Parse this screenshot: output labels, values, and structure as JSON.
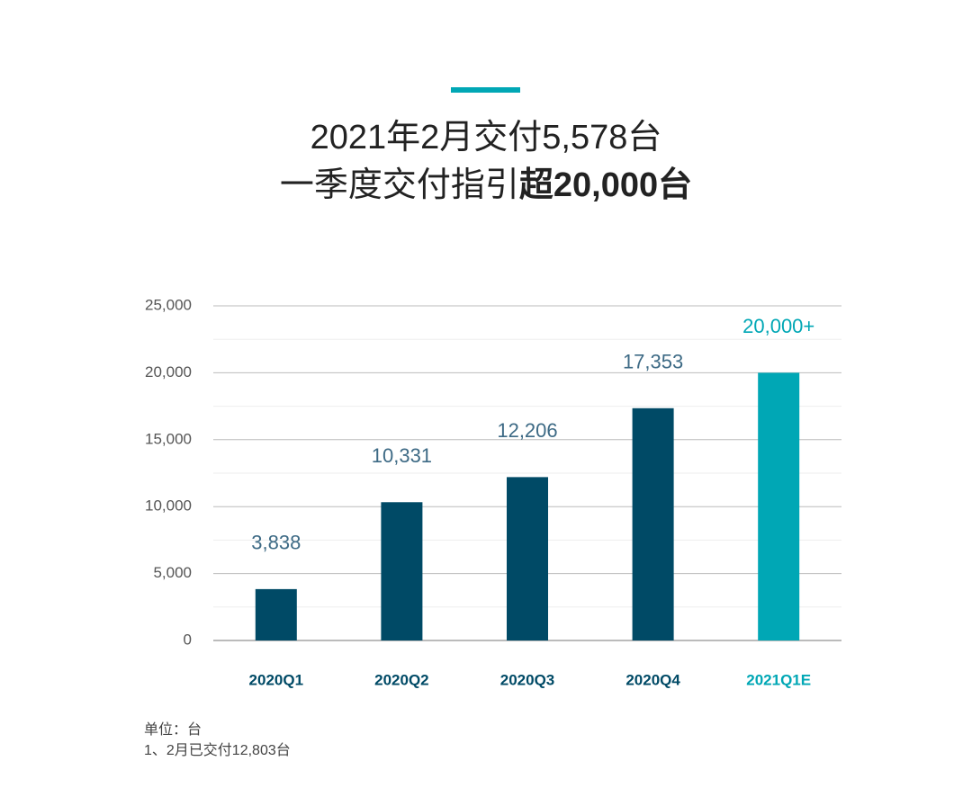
{
  "chart_data": {
    "type": "bar",
    "title": "2021年2月交付5,578台",
    "subtitle_parts": [
      "一季度交付指引",
      "超20,000台"
    ],
    "categories": [
      "2020Q1",
      "2020Q2",
      "2020Q3",
      "2020Q4",
      "2021Q1E"
    ],
    "values": [
      3838,
      10331,
      12206,
      17353,
      20000
    ],
    "value_labels": [
      "3,838",
      "10,331",
      "12,206",
      "17,353",
      "20,000+"
    ],
    "colors": [
      "#004a66",
      "#004a66",
      "#004a66",
      "#004a66",
      "#00a7b5"
    ],
    "ylim": [
      0,
      25000
    ],
    "yticks": [
      0,
      {
        "value": 5000,
        "label": "5,000"
      },
      {
        "value": 10000,
        "label": "10,000"
      },
      {
        "value": 15000,
        "label": "15,000"
      },
      {
        "value": 20000,
        "label": "20,000"
      },
      {
        "value": 25000,
        "label": "25,000"
      }
    ],
    "minor_yticks": [
      2500,
      7500,
      12500,
      17500,
      22500
    ],
    "grid": true,
    "notes": [
      "单位：台",
      "1、2月已交付12,803台"
    ]
  }
}
